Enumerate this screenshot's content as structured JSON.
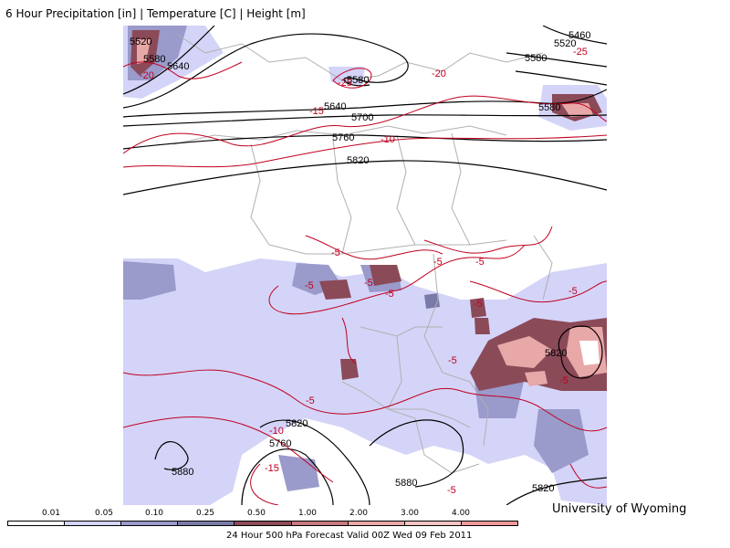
{
  "header": {
    "title": "6 Hour Precipitation [in] | Temperature [C] | Height [m]"
  },
  "credit": "University of Wyoming",
  "footer": "24 Hour 500 hPa Forecast Valid 00Z Wed 09 Feb 2011",
  "legend": {
    "ticks": [
      "0.01",
      "0.05",
      "0.10",
      "0.25",
      "0.50",
      "1.00",
      "2.00",
      "3.00",
      "4.00"
    ],
    "colors": [
      "#ffffff",
      "#d4d4f8",
      "#9a9acb",
      "#7a7aa8",
      "#8b4a58",
      "#c8787f",
      "#e8a8a8",
      "#f4c4c4",
      "#f29a9a"
    ]
  },
  "colors": {
    "height_contour": "#000000",
    "temp_contour": "#c00020",
    "borders": "#b0b0b0"
  },
  "height_labels": [
    "5520",
    "5580",
    "5640",
    "5580",
    "5640",
    "5700",
    "5760",
    "5820",
    "5460",
    "5520",
    "5580",
    "5580",
    "5820",
    "5820",
    "5760",
    "5880",
    "5880",
    "5820"
  ],
  "temp_labels": [
    "-20",
    "-25",
    "-20",
    "-15",
    "-10",
    "-25",
    "-5",
    "-5",
    "-5",
    "-5",
    "-5",
    "-5",
    "-5",
    "-5",
    "-5",
    "-5",
    "-5",
    "-10",
    "-15",
    "-5"
  ]
}
